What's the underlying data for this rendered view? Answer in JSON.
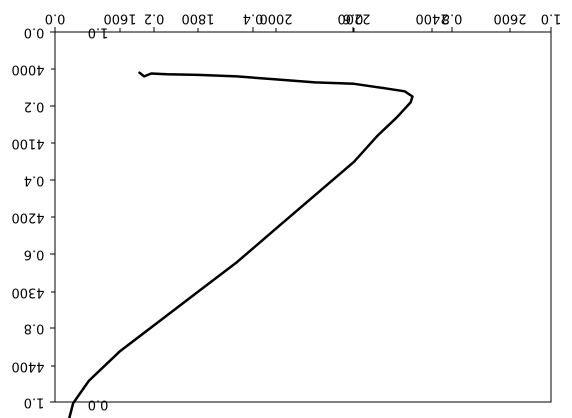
{
  "chart_data": {
    "type": "line",
    "note_mirror": "the whole figure is rendered mirrored (flipped horizontally and vertically)",
    "axes": [
      {
        "name": "primary-x",
        "position": "bottom-edge (shown mirrored at top)",
        "ticks": [
          "0.0",
          "0.2",
          "0.4",
          "0.6",
          "0.8",
          "1.0"
        ],
        "range": [
          0,
          1
        ]
      },
      {
        "name": "primary-y",
        "position": "left (mirrored)",
        "ticks": [
          "0.0",
          "0.2",
          "0.4",
          "0.6",
          "0.8",
          "1.0"
        ],
        "range": [
          0,
          1
        ]
      },
      {
        "name": "secondary-x",
        "position": "top (shown mirrored)",
        "ticks": [
          "1600",
          "1800",
          "2000",
          "2200",
          "2400",
          "2600"
        ],
        "range": [
          1400,
          2700
        ]
      },
      {
        "name": "secondary-y",
        "position": "left (shown mirrored)",
        "ticks": [
          "4000",
          "4100",
          "4200",
          "4300",
          "4400"
        ],
        "range": [
          3990,
          4490
        ]
      }
    ],
    "series": [
      {
        "points": [
          [
            1650,
            4005
          ],
          [
            1662,
            4010
          ],
          [
            1680,
            4006
          ],
          [
            1720,
            4007
          ],
          [
            1800,
            4008
          ],
          [
            1900,
            4010
          ],
          [
            2000,
            4014
          ],
          [
            2100,
            4018
          ],
          [
            2200,
            4020
          ],
          [
            2280,
            4026
          ],
          [
            2330,
            4030
          ],
          [
            2350,
            4037
          ],
          [
            2345,
            4045
          ],
          [
            2310,
            4065
          ],
          [
            2260,
            4090
          ],
          [
            2200,
            4125
          ],
          [
            2100,
            4170
          ],
          [
            2000,
            4215
          ],
          [
            1900,
            4260
          ],
          [
            1800,
            4300
          ],
          [
            1700,
            4340
          ],
          [
            1600,
            4380
          ],
          [
            1520,
            4420
          ],
          [
            1480,
            4450
          ],
          [
            1470,
            4470
          ],
          [
            1480,
            4478
          ],
          [
            1500,
            4480
          ],
          [
            1600,
            4486
          ],
          [
            1700,
            4488
          ],
          [
            1800,
            4490
          ],
          [
            1900,
            4490
          ],
          [
            2000,
            4489
          ],
          [
            2100,
            4488
          ],
          [
            2200,
            4487
          ],
          [
            2280,
            4486
          ],
          [
            2360,
            4486
          ],
          [
            2420,
            4484
          ],
          [
            2490,
            4482
          ],
          [
            2530,
            4486
          ],
          [
            2500,
            4494
          ]
        ]
      }
    ],
    "grid": false
  },
  "axes_labels": {
    "top_ticks_mirrored": [
      "0.0",
      "0.2",
      "0.4",
      "0.6",
      "0.8",
      "1.0"
    ],
    "top_secondary_mirrored": [
      "1600",
      "1800",
      "2000",
      "2200",
      "2400",
      "2600"
    ],
    "left_ticks_mirrored": [
      "0.0",
      "0.2",
      "0.4",
      "0.6",
      "0.8",
      "1.0"
    ],
    "left_secondary_mirrored": [
      "4000",
      "4100",
      "4200",
      "4300",
      "4400"
    ],
    "stray_bottom_left": "0.0",
    "stray_top_left": "1.0"
  }
}
